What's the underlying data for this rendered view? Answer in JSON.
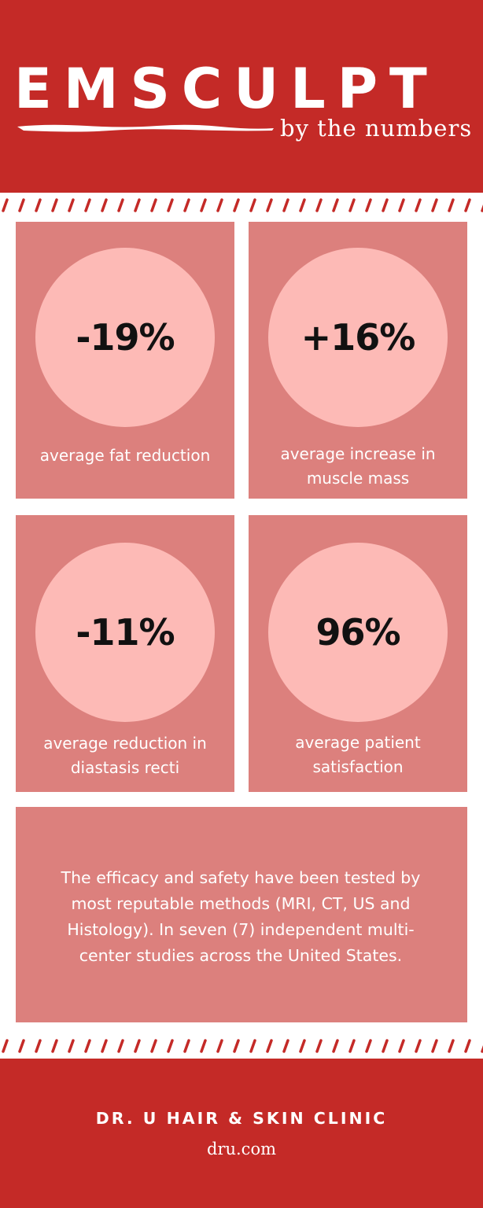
{
  "header": {
    "title": "EMSCULPT",
    "subtitle": "by the numbers"
  },
  "stats": [
    {
      "value": "-19%",
      "label_lines": [
        "average fat reduction"
      ]
    },
    {
      "value": "+16%",
      "label_lines": [
        "average increase in",
        "muscle mass"
      ]
    },
    {
      "value": "-11%",
      "label_lines": [
        "average reduction in",
        "diastasis recti"
      ]
    },
    {
      "value": "96%",
      "label_lines": [
        "average patient",
        "satisfaction"
      ]
    }
  ],
  "info": {
    "lines": [
      "The efficacy and safety have been tested by",
      "most reputable methods (MRI, CT, US and",
      "Histology). In seven (7) independent multi-",
      "center studies across the United States."
    ]
  },
  "footer": {
    "clinic_name": "DR. U HAIR & SKIN CLINIC",
    "website": "dru.com"
  },
  "colors": {
    "brand_red": "#c42a27",
    "panel": "#dc807d",
    "circle": "#fdbab6"
  }
}
